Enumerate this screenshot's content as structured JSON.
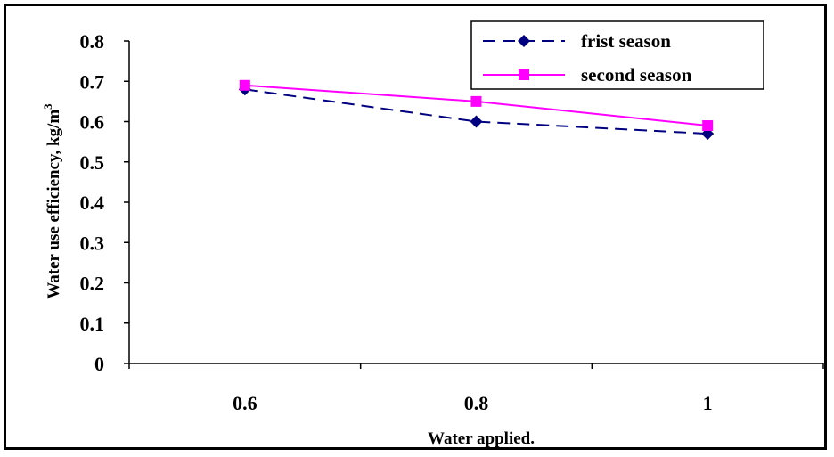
{
  "chart_data": {
    "type": "line",
    "categories": [
      "0.6",
      "0.8",
      "1"
    ],
    "series": [
      {
        "name": "frist season",
        "values": [
          0.68,
          0.6,
          0.57
        ],
        "color": "#000080",
        "marker": "diamond",
        "dash": true
      },
      {
        "name": "second season",
        "values": [
          0.69,
          0.65,
          0.59
        ],
        "color": "#ff00ff",
        "marker": "square",
        "dash": false
      }
    ],
    "xlabel": "Water applied.",
    "ylabel": "Water use efficiency, kg/m",
    "ylabel_superscript": "3",
    "ylim": [
      0,
      0.8
    ],
    "yticks": [
      "0",
      "0.1",
      "0.2",
      "0.3",
      "0.4",
      "0.5",
      "0.6",
      "0.7",
      "0.8"
    ],
    "grid": false,
    "legend_position": "top-right"
  }
}
